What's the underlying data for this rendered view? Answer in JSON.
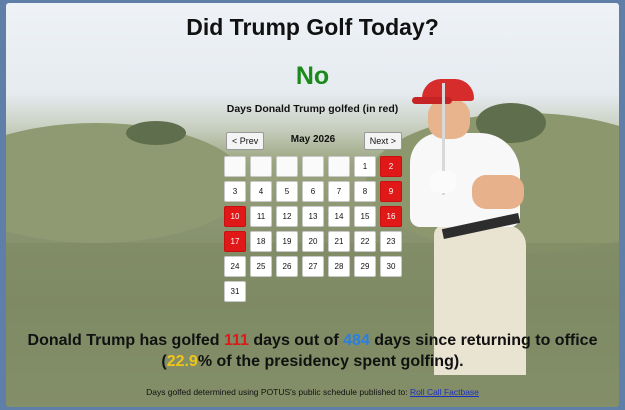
{
  "header": {
    "title": "Did Trump Golf Today?",
    "answer": "No"
  },
  "calendar": {
    "caption": "Days Donald Trump golfed (in red)",
    "prev_label": "< Prev",
    "next_label": "Next >",
    "month_label": "May 2026",
    "leading_blanks": 5,
    "days_in_month": 31,
    "golfed_days": [
      2,
      9,
      10,
      16,
      17
    ]
  },
  "stats": {
    "prefix": "Donald Trump has golfed ",
    "days_golfed": "111",
    "middle": " days out of ",
    "days_total": "484",
    "suffix_a": " days since returning to office (",
    "percent": "22.9",
    "suffix_b": "% of the presidency spent golfing)."
  },
  "footer": {
    "text": "Days golfed determined using POTUS's public schedule published to: ",
    "link_label": "Roll Call Factbase"
  },
  "colors": {
    "golfed": "#e01818",
    "answer_no": "#1a8a1a",
    "total_days": "#2a7fe0",
    "percent": "#f0c419"
  }
}
